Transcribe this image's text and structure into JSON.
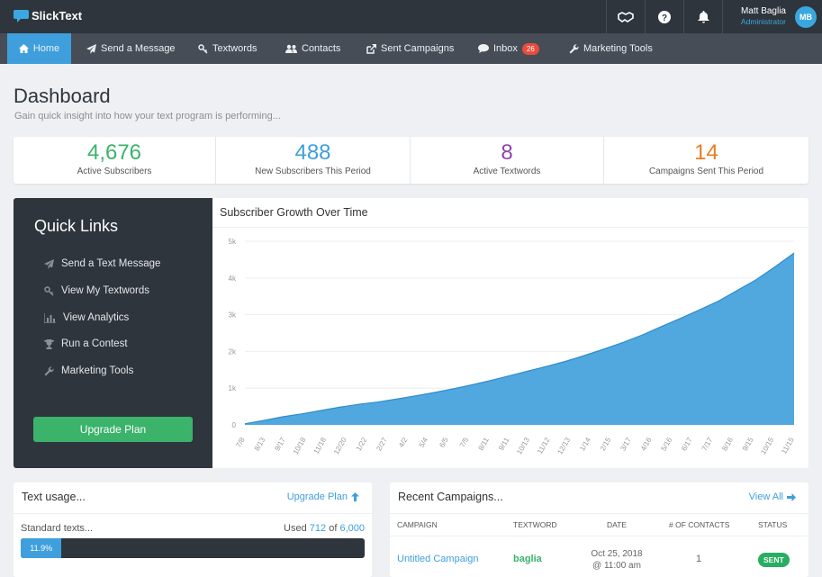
{
  "app": {
    "name": "SlickText"
  },
  "user": {
    "name": "Matt Baglia",
    "role": "Administrator",
    "initials": "MB"
  },
  "nav": [
    {
      "label": "Home",
      "icon": "home-icon",
      "active": true
    },
    {
      "label": "Send a Message",
      "icon": "paper-plane-icon"
    },
    {
      "label": "Textwords",
      "icon": "key-icon"
    },
    {
      "label": "Contacts",
      "icon": "users-icon"
    },
    {
      "label": "Sent Campaigns",
      "icon": "external-link-icon"
    },
    {
      "label": "Inbox",
      "icon": "chat-bubble-icon",
      "badge": "26"
    },
    {
      "label": "Marketing Tools",
      "icon": "wrench-icon"
    }
  ],
  "page": {
    "title": "Dashboard",
    "subtitle": "Gain quick insight into how your text program is performing..."
  },
  "stats": [
    {
      "value": "4,676",
      "label": "Active Subscribers",
      "color": "#3bb36b"
    },
    {
      "value": "488",
      "label": "New Subscribers This Period",
      "color": "#3e9fdc"
    },
    {
      "value": "8",
      "label": "Active Textwords",
      "color": "#8e44ad"
    },
    {
      "value": "14",
      "label": "Campaigns Sent This Period",
      "color": "#e67e22"
    }
  ],
  "quick_links": {
    "title": "Quick Links",
    "items": [
      {
        "label": "Send a Text Message",
        "icon": "paper-plane-icon"
      },
      {
        "label": "View My Textwords",
        "icon": "key-icon"
      },
      {
        "label": "View Analytics",
        "icon": "bar-chart-icon"
      },
      {
        "label": "Run a Contest",
        "icon": "trophy-icon"
      },
      {
        "label": "Marketing Tools",
        "icon": "wrench-icon"
      }
    ],
    "upgrade_label": "Upgrade Plan"
  },
  "chart_data": {
    "type": "area",
    "title": "Subscriber Growth Over Time",
    "xlabel": "",
    "ylabel": "",
    "ylim": [
      0,
      5000
    ],
    "yticks": [
      0,
      1000,
      2000,
      3000,
      4000,
      5000
    ],
    "ytick_labels": [
      "0",
      "1k",
      "2k",
      "3k",
      "4k",
      "5k"
    ],
    "x_tick_labels": [
      "7/8",
      "8/13",
      "9/17",
      "10/18",
      "11/18",
      "12/20",
      "1/22",
      "2/27",
      "4/2",
      "5/4",
      "6/5",
      "7/5",
      "8/11",
      "9/11",
      "10/13",
      "11/12",
      "12/13",
      "1/14",
      "2/15",
      "3/17",
      "4/16",
      "5/16",
      "6/17",
      "7/17",
      "8/16",
      "9/15",
      "10/15",
      "11/15"
    ],
    "values": [
      30,
      120,
      220,
      300,
      390,
      480,
      560,
      620,
      700,
      790,
      880,
      980,
      1090,
      1210,
      1340,
      1470,
      1600,
      1740,
      1900,
      2070,
      2250,
      2450,
      2680,
      2900,
      3130,
      3370,
      3660,
      3950,
      4310,
      4680
    ],
    "grid": true,
    "color": "#3e9fdc"
  },
  "text_usage": {
    "title": "Text usage...",
    "link_label": "Upgrade Plan",
    "standard_label": "Standard texts...",
    "used_prefix": "Used",
    "used": "712",
    "of_label": "of",
    "limit": "6,000",
    "percent_label": "11.9%",
    "fraction": 0.119
  },
  "recent_campaigns": {
    "title": "Recent Campaigns...",
    "link_label": "View All",
    "columns": [
      "Campaign",
      "Textword",
      "Date",
      "# of Contacts",
      "Status"
    ],
    "rows": [
      {
        "campaign": "Untitled Campaign",
        "textword": "baglia",
        "date_line1": "Oct 25, 2018",
        "date_line2": "@ 11:00 am",
        "contacts": "1",
        "status": "SENT"
      }
    ]
  }
}
